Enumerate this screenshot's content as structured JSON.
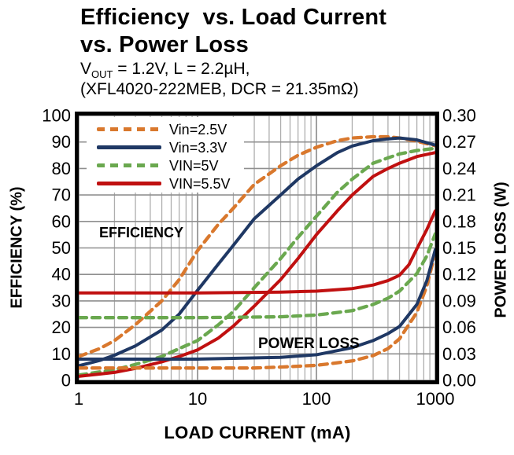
{
  "title": {
    "line1": "Efficiency  vs. Load Current",
    "line2": "vs. Power Loss"
  },
  "subtitle": {
    "v_main": "V",
    "v_sub": "OUT",
    "line1_rest": " = 1.2V, L = 2.2µH,",
    "line2": "(XFL4020-222MEB, DCR = 21.35mΩ)"
  },
  "chart_data": {
    "type": "line",
    "title": "Efficiency vs. Load Current vs. Power Loss",
    "xlabel": "LOAD CURRENT (mA)",
    "x_scale": "log",
    "xlim": [
      1,
      1000
    ],
    "x_ticks": [
      1,
      10,
      100,
      1000
    ],
    "y_left": {
      "label": "EFFICIENCY (%)",
      "lim": [
        0,
        100
      ],
      "tick_step": 10
    },
    "y_right": {
      "label": "POWER LOSS (W)",
      "lim": [
        0,
        0.3
      ],
      "tick_step": 0.03
    },
    "grid": true,
    "legend_position": "top-left",
    "legend": [
      {
        "label": "Vin=2.5V",
        "color": "#D9782D",
        "dashed": true
      },
      {
        "label": "Vin=3.3V",
        "color": "#1F3864",
        "dashed": false
      },
      {
        "label": "VIN=5V",
        "color": "#6AA84F",
        "dashed": true
      },
      {
        "label": "VIN=5.5V",
        "color": "#C01010",
        "dashed": false
      }
    ],
    "annotations": [
      {
        "text": "EFFICIENCY"
      },
      {
        "text": "POWER LOSS"
      }
    ],
    "series": [
      {
        "name": "Vin=2.5V efficiency",
        "vin": "2.5V",
        "measure": "efficiency",
        "axis": "left",
        "units": "%",
        "color": "#D9782D",
        "dashed": true,
        "points": [
          [
            1,
            9
          ],
          [
            1.5,
            12
          ],
          [
            2,
            15
          ],
          [
            3,
            21
          ],
          [
            5,
            30
          ],
          [
            7,
            38
          ],
          [
            10,
            49
          ],
          [
            15,
            59
          ],
          [
            20,
            65
          ],
          [
            30,
            74
          ],
          [
            50,
            81
          ],
          [
            70,
            85
          ],
          [
            100,
            88
          ],
          [
            150,
            90.5
          ],
          [
            200,
            91.5
          ],
          [
            300,
            92
          ],
          [
            400,
            92
          ],
          [
            500,
            91.5
          ],
          [
            700,
            90.3
          ],
          [
            1000,
            88.6
          ]
        ]
      },
      {
        "name": "Vin=3.3V efficiency",
        "vin": "3.3V",
        "measure": "efficiency",
        "axis": "left",
        "units": "%",
        "color": "#1F3864",
        "dashed": false,
        "points": [
          [
            1,
            5.5
          ],
          [
            1.5,
            7.5
          ],
          [
            2,
            9.5
          ],
          [
            3,
            13
          ],
          [
            5,
            19
          ],
          [
            7,
            25
          ],
          [
            10,
            34
          ],
          [
            15,
            44
          ],
          [
            20,
            51
          ],
          [
            30,
            61
          ],
          [
            50,
            70
          ],
          [
            70,
            76
          ],
          [
            100,
            81
          ],
          [
            150,
            86
          ],
          [
            200,
            88.5
          ],
          [
            300,
            90.5
          ],
          [
            400,
            91.2
          ],
          [
            500,
            91.5
          ],
          [
            700,
            90.8
          ],
          [
            1000,
            88.8
          ]
        ]
      },
      {
        "name": "VIN=5V efficiency",
        "vin": "5V",
        "measure": "efficiency",
        "axis": "left",
        "units": "%",
        "color": "#6AA84F",
        "dashed": true,
        "points": [
          [
            1,
            2
          ],
          [
            2,
            4
          ],
          [
            3,
            6
          ],
          [
            5,
            9
          ],
          [
            7,
            12
          ],
          [
            10,
            15
          ],
          [
            15,
            21
          ],
          [
            20,
            26
          ],
          [
            30,
            35
          ],
          [
            50,
            46
          ],
          [
            70,
            54
          ],
          [
            100,
            62
          ],
          [
            150,
            71
          ],
          [
            200,
            76
          ],
          [
            300,
            82
          ],
          [
            400,
            84
          ],
          [
            500,
            85.5
          ],
          [
            700,
            86.8
          ],
          [
            1000,
            87.6
          ]
        ]
      },
      {
        "name": "VIN=5.5V efficiency",
        "vin": "5.5V",
        "measure": "efficiency",
        "axis": "left",
        "units": "%",
        "color": "#C01010",
        "dashed": false,
        "points": [
          [
            1,
            1.5
          ],
          [
            2,
            3
          ],
          [
            3,
            4.5
          ],
          [
            5,
            7
          ],
          [
            7,
            9
          ],
          [
            10,
            11.5
          ],
          [
            15,
            16
          ],
          [
            20,
            20.5
          ],
          [
            30,
            28
          ],
          [
            50,
            38
          ],
          [
            70,
            46
          ],
          [
            100,
            55
          ],
          [
            150,
            64
          ],
          [
            200,
            70
          ],
          [
            300,
            77
          ],
          [
            400,
            80
          ],
          [
            500,
            82
          ],
          [
            700,
            84.5
          ],
          [
            1000,
            86
          ]
        ]
      },
      {
        "name": "Vin=2.5V power loss",
        "vin": "2.5V",
        "measure": "power_loss",
        "axis": "right",
        "units": "W",
        "color": "#D9782D",
        "dashed": true,
        "points": [
          [
            1,
            0.014
          ],
          [
            5,
            0.014
          ],
          [
            10,
            0.014
          ],
          [
            30,
            0.014
          ],
          [
            50,
            0.015
          ],
          [
            100,
            0.017
          ],
          [
            200,
            0.022
          ],
          [
            300,
            0.028
          ],
          [
            400,
            0.036
          ],
          [
            500,
            0.047
          ],
          [
            700,
            0.077
          ],
          [
            850,
            0.107
          ],
          [
            1000,
            0.145
          ]
        ]
      },
      {
        "name": "Vin=3.3V power loss",
        "vin": "3.3V",
        "measure": "power_loss",
        "axis": "right",
        "units": "W",
        "color": "#1F3864",
        "dashed": false,
        "points": [
          [
            1,
            0.024
          ],
          [
            10,
            0.024
          ],
          [
            50,
            0.026
          ],
          [
            100,
            0.029
          ],
          [
            200,
            0.037
          ],
          [
            300,
            0.045
          ],
          [
            400,
            0.053
          ],
          [
            500,
            0.061
          ],
          [
            700,
            0.086
          ],
          [
            850,
            0.113
          ],
          [
            1000,
            0.148
          ]
        ]
      },
      {
        "name": "VIN=5V power loss",
        "vin": "5V",
        "measure": "power_loss",
        "axis": "right",
        "units": "W",
        "color": "#6AA84F",
        "dashed": true,
        "points": [
          [
            1,
            0.071
          ],
          [
            10,
            0.071
          ],
          [
            50,
            0.072
          ],
          [
            100,
            0.074
          ],
          [
            200,
            0.079
          ],
          [
            300,
            0.086
          ],
          [
            400,
            0.093
          ],
          [
            500,
            0.101
          ],
          [
            700,
            0.121
          ],
          [
            850,
            0.141
          ],
          [
            1000,
            0.166
          ]
        ]
      },
      {
        "name": "VIN=5.5V power loss",
        "vin": "5.5V",
        "measure": "power_loss",
        "axis": "right",
        "units": "W",
        "color": "#C01010",
        "dashed": false,
        "points": [
          [
            1,
            0.099
          ],
          [
            10,
            0.099
          ],
          [
            50,
            0.1
          ],
          [
            100,
            0.101
          ],
          [
            200,
            0.104
          ],
          [
            300,
            0.108
          ],
          [
            400,
            0.113
          ],
          [
            500,
            0.119
          ],
          [
            600,
            0.131
          ],
          [
            700,
            0.149
          ],
          [
            850,
            0.171
          ],
          [
            1000,
            0.192
          ]
        ]
      }
    ]
  }
}
